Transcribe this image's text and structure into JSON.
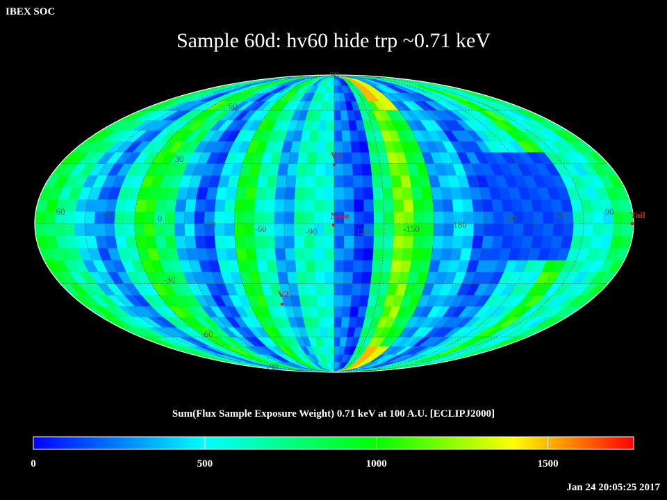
{
  "header": {
    "soc_label": "IBEX SOC",
    "title": "Sample 60d: hv60 hide trp ~0.71 keV"
  },
  "map": {
    "projection": "mollweide",
    "background_color": "#000000",
    "graticule_color": "#2f6a55",
    "lon_labels": [
      "60",
      "30",
      "0",
      "-30",
      "-60",
      "-90",
      "-120",
      "-150",
      "180",
      "150",
      "120",
      "90"
    ],
    "lat_labels": [
      "90",
      "60",
      "30",
      "-30",
      "-60",
      "-90"
    ],
    "markers": [
      {
        "label": "V1",
        "color": "#cc2222"
      },
      {
        "label": "Nose",
        "color": "#cc2222"
      },
      {
        "label": "V2",
        "color": "#cc2222"
      },
      {
        "label": "Tail",
        "color": "#cc2222"
      }
    ]
  },
  "colorbar": {
    "title": "Sum(Flux Sample Exposure Weight)  0.71 keV at 100 A.U. [ECLIPJ2000]",
    "min": 0,
    "max": 1750,
    "ticks": [
      "0",
      "500",
      "1000",
      "1500"
    ],
    "tick_values": [
      0,
      500,
      1000,
      1500
    ],
    "colors": [
      "#0000ff",
      "#00ffff",
      "#00ff00",
      "#ffff00",
      "#ff0000"
    ]
  },
  "footer": {
    "timestamp": "Jan 24 20:05:25 2017"
  }
}
